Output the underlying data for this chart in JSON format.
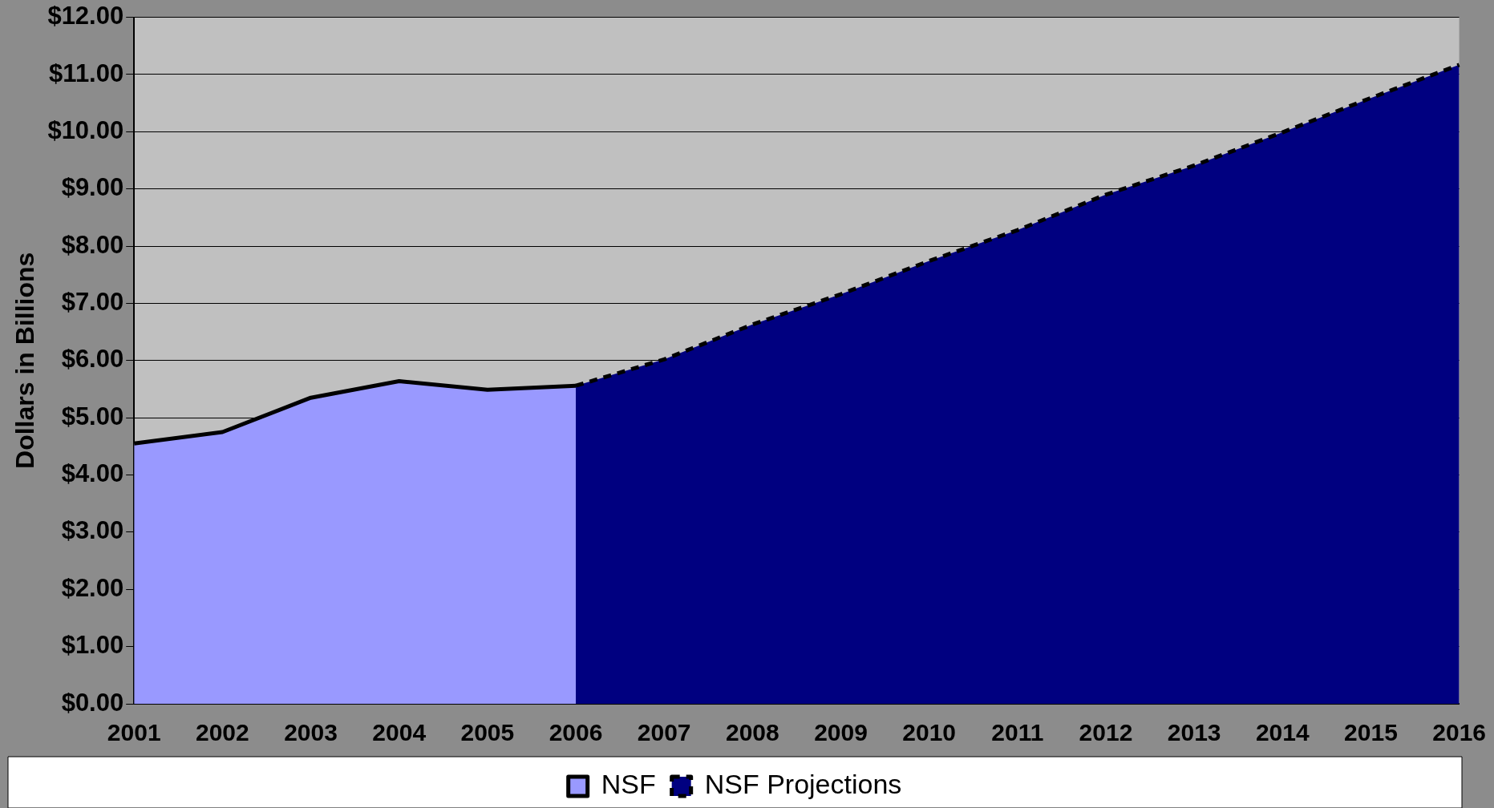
{
  "chart_data": {
    "type": "area",
    "ylabel": "Dollars in Billions",
    "categories": [
      "2001",
      "2002",
      "2003",
      "2004",
      "2005",
      "2006",
      "2007",
      "2008",
      "2009",
      "2010",
      "2011",
      "2012",
      "2013",
      "2014",
      "2015",
      "2016"
    ],
    "series": [
      {
        "name": "NSF",
        "color": "#9999ff",
        "line_style": "solid",
        "values": [
          4.55,
          4.75,
          5.35,
          5.64,
          5.49,
          5.56,
          null,
          null,
          null,
          null,
          null,
          null,
          null,
          null,
          null,
          null
        ]
      },
      {
        "name": "NSF Projections",
        "color": "#000080",
        "line_style": "dashed",
        "values": [
          null,
          null,
          null,
          null,
          null,
          5.56,
          6.02,
          6.63,
          7.16,
          7.74,
          8.28,
          8.9,
          9.41,
          9.99,
          10.59,
          11.17
        ]
      }
    ],
    "ylim": [
      0,
      12
    ],
    "yticks": [
      {
        "value": 0,
        "label": "$0.00"
      },
      {
        "value": 1,
        "label": "$1.00"
      },
      {
        "value": 2,
        "label": "$2.00"
      },
      {
        "value": 3,
        "label": "$3.00"
      },
      {
        "value": 4,
        "label": "$4.00"
      },
      {
        "value": 5,
        "label": "$5.00"
      },
      {
        "value": 6,
        "label": "$6.00"
      },
      {
        "value": 7,
        "label": "$7.00"
      },
      {
        "value": 8,
        "label": "$8.00"
      },
      {
        "value": 9,
        "label": "$9.00"
      },
      {
        "value": 10,
        "label": "$10.00"
      },
      {
        "value": 11,
        "label": "$11.00"
      },
      {
        "value": 12,
        "label": "$12.00"
      }
    ],
    "grid": "y",
    "legend": "bottom",
    "marker": "none"
  }
}
